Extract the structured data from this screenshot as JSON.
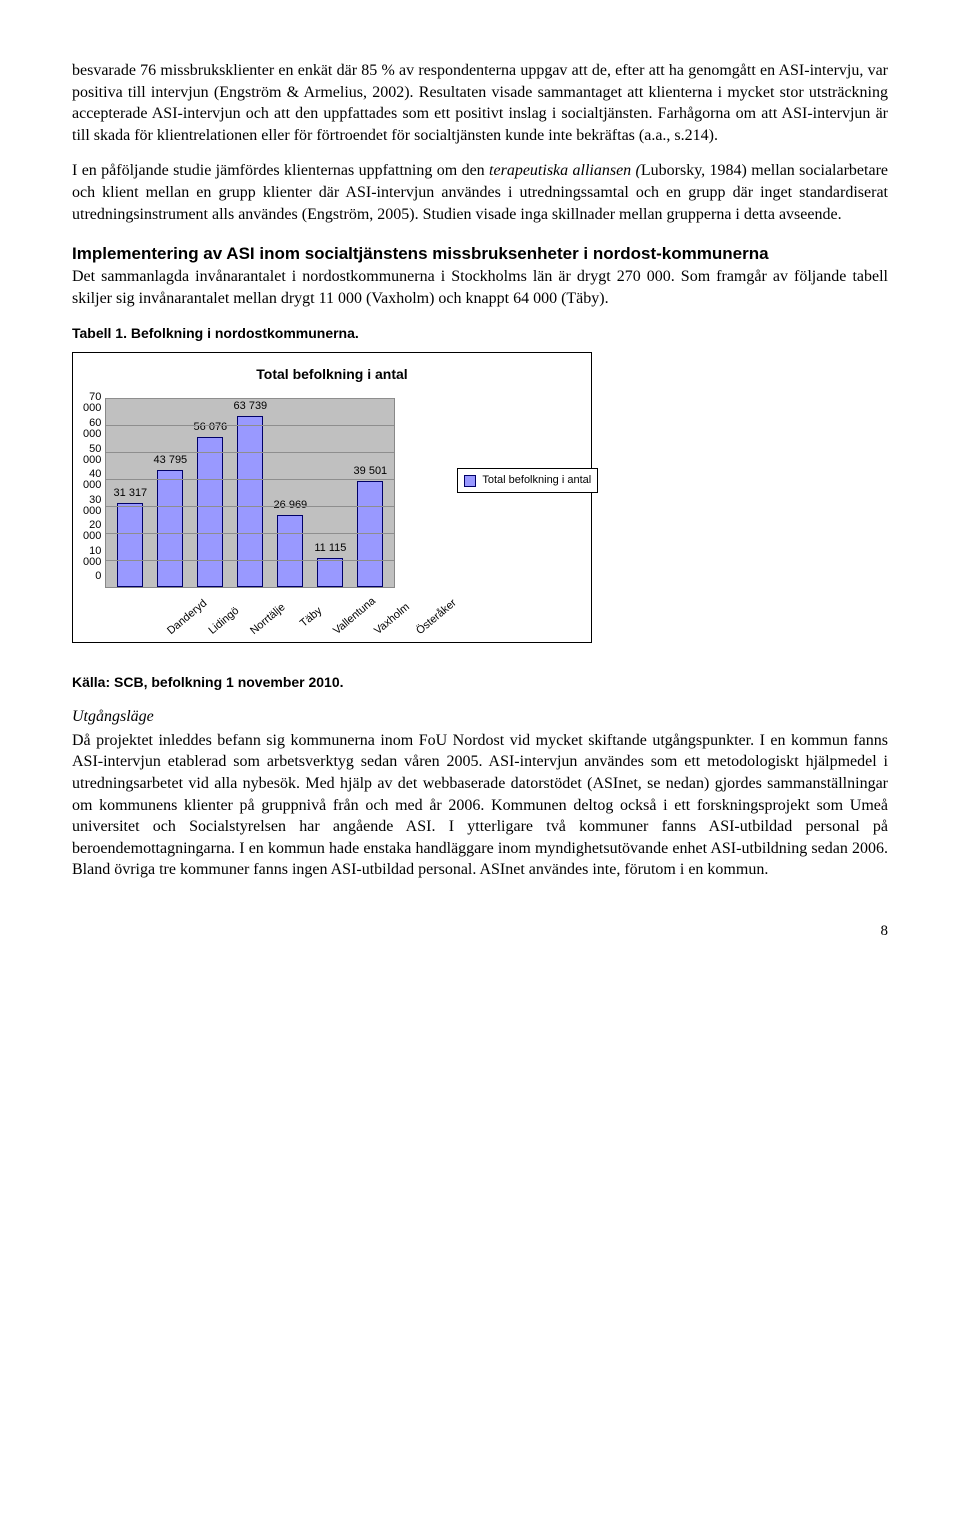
{
  "para1": "besvarade 76 missbruksklienter en enkät där 85 % av respondenterna uppgav att de, efter att ha genomgått en ASI-intervju, var positiva till intervjun (Engström & Armelius, 2002). Resultaten visade sammantaget att klienterna i mycket stor utsträckning accepterade ASI-intervjun och att den uppfattades som ett positivt inslag i socialtjänsten. Farhågorna om att ASI-intervjun är till skada för klientrelationen eller för förtroendet för socialtjänsten kunde inte bekräftas (a.a., s.214).",
  "para2_a": "I en påföljande studie jämfördes klienternas uppfattning om den ",
  "para2_italic": "terapeutiska alliansen (",
  "para2_b": "Luborsky, 1984) mellan socialarbetare och klient mellan en grupp klienter där ASI-intervjun användes i utredningssamtal och en grupp där inget standardiserat utredningsinstrument alls användes (Engström, 2005). Studien visade inga skillnader mellan grupperna i detta avseende.",
  "heading1": "Implementering av ASI inom socialtjänstens missbruksenheter i nordost-kommunerna",
  "para3": "Det sammanlagda invånarantalet i nordostkommunerna i Stockholms län är drygt 270 000. Som framgår av följande tabell skiljer sig invånarantalet mellan drygt 11 000 (Vaxholm) och knappt 64 000 (Täby).",
  "table_caption": "Tabell 1. Befolkning i nordostkommunerna.",
  "chart": {
    "title": "Total befolkning i antal",
    "y_ticks": [
      "0",
      "10 000",
      "20 000",
      "30 000",
      "40 000",
      "50 000",
      "60 000",
      "70 000"
    ],
    "y_max": 70000,
    "categories": [
      "Danderyd",
      "Lidingö",
      "Norrtälje",
      "Täby",
      "Vallentuna",
      "Vaxholm",
      "Österåker"
    ],
    "values": [
      31317,
      43795,
      56076,
      63739,
      26969,
      11115,
      39501
    ],
    "value_labels": [
      "31 317",
      "43 795",
      "56 076",
      "63 739",
      "26 969",
      "11 115",
      "39 501"
    ],
    "bar_color": "#9999ff",
    "bar_border": "#000066",
    "plot_bg": "#c0c0c0",
    "legend_label": "Total befolkning i antal"
  },
  "source": "Källa: SCB, befolkning 1 november 2010.",
  "utg_head": "Utgångsläge",
  "para4": "Då projektet inleddes befann sig kommunerna inom FoU Nordost vid mycket skiftande utgångspunkter. I en kommun fanns ASI-intervjun etablerad som arbetsverktyg sedan våren 2005. ASI-intervjun användes som ett metodologiskt hjälpmedel i utredningsarbetet vid alla nybesök. Med hjälp av det webbaserade datorstödet (ASInet, se nedan) gjordes sammanställningar om kommunens klienter på gruppnivå från och med år 2006. Kommunen deltog också i ett forskningsprojekt som Umeå universitet och Socialstyrelsen har angående ASI. I ytterligare två kommuner fanns ASI-utbildad personal på beroendemottagningarna. I en kommun hade enstaka handläggare inom myndighetsutövande enhet ASI-utbildning sedan 2006. Bland övriga tre kommuner fanns ingen ASI-utbildad personal. ASInet användes inte, förutom i en kommun.",
  "page": "8"
}
